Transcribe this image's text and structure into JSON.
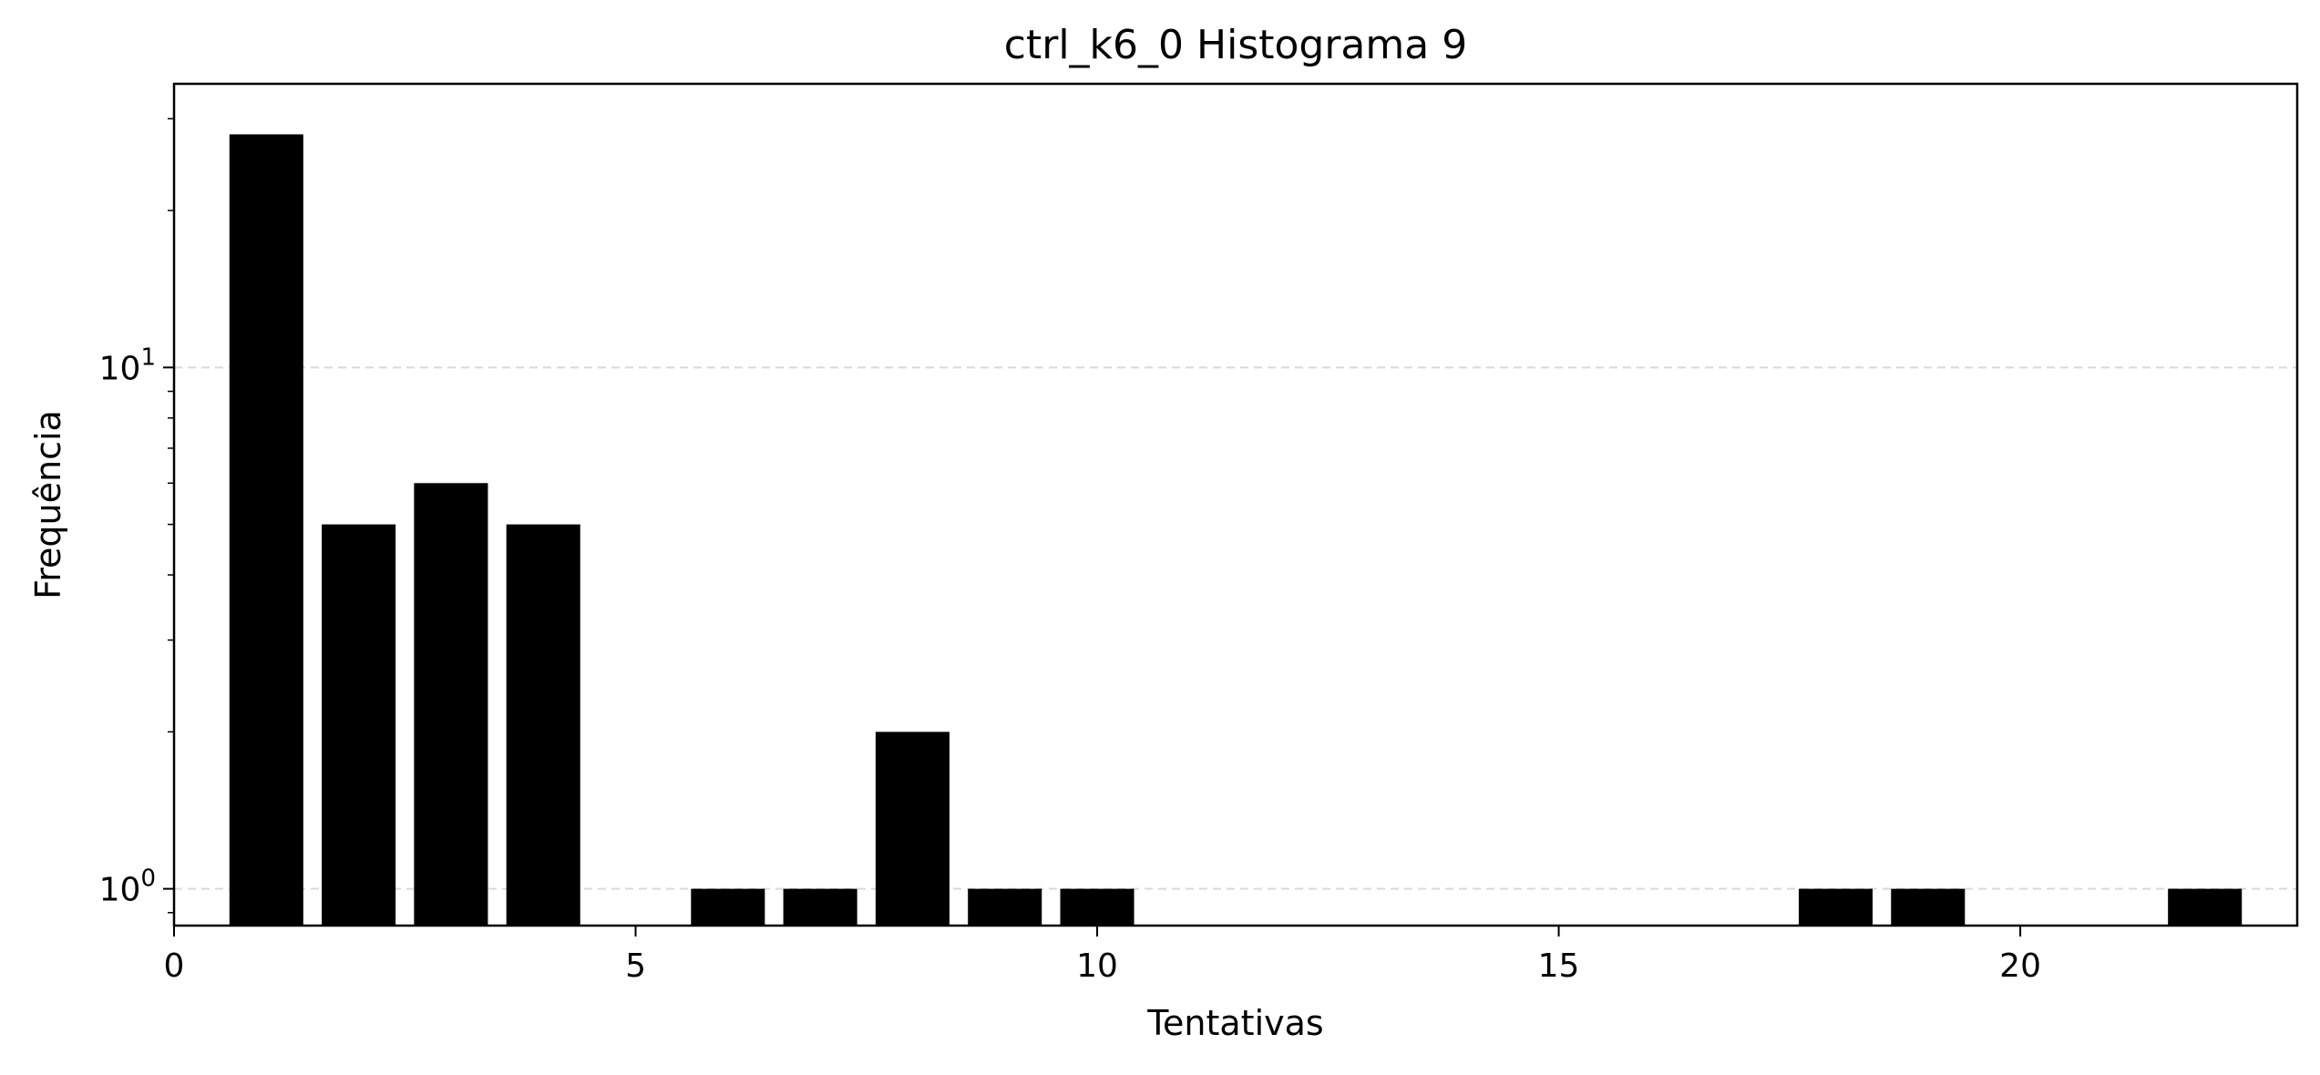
{
  "chart_data": {
    "type": "bar",
    "title": "ctrl_k6_0 Histograma 9",
    "xlabel": "Tentativas",
    "ylabel": "Frequência",
    "y_scale": "log",
    "x": [
      1,
      2,
      3,
      4,
      6,
      7,
      8,
      9,
      10,
      18,
      19,
      22
    ],
    "values": [
      28,
      5,
      6,
      5,
      1,
      1,
      2,
      1,
      1,
      1,
      1,
      1
    ],
    "xlim": [
      0,
      23
    ],
    "ylim": [
      0.85,
      35
    ],
    "x_ticks": [
      0,
      5,
      10,
      15,
      20
    ],
    "y_ticks": [
      {
        "value": 1,
        "base": "10",
        "exp": "0"
      },
      {
        "value": 10,
        "base": "10",
        "exp": "1"
      }
    ],
    "grid": {
      "axis": "y",
      "style": "dashed"
    },
    "bar_color": "#000000",
    "grid_color": "#d9d9d9"
  }
}
